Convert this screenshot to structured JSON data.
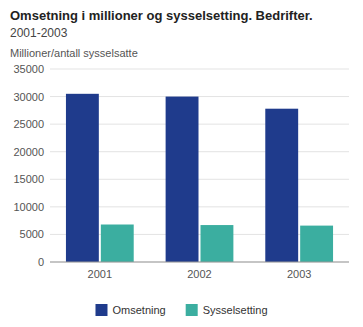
{
  "chart_data": {
    "type": "bar",
    "title": "Omsetning i millioner og sysselsetting. Bedrifter.",
    "subtitle": "2001-2003",
    "ylabel": "Millioner/antall sysselsatte",
    "categories": [
      "2001",
      "2002",
      "2003"
    ],
    "series": [
      {
        "name": "Omsetning",
        "color": "#1F3B8C",
        "values": [
          30500,
          30000,
          27800
        ]
      },
      {
        "name": "Sysselsetting",
        "color": "#3BAEA0",
        "values": [
          6800,
          6700,
          6600
        ]
      }
    ],
    "ylim": [
      0,
      35000
    ],
    "yticks": [
      0,
      5000,
      10000,
      15000,
      20000,
      25000,
      30000,
      35000
    ],
    "grid": true,
    "legend": "bottom"
  }
}
